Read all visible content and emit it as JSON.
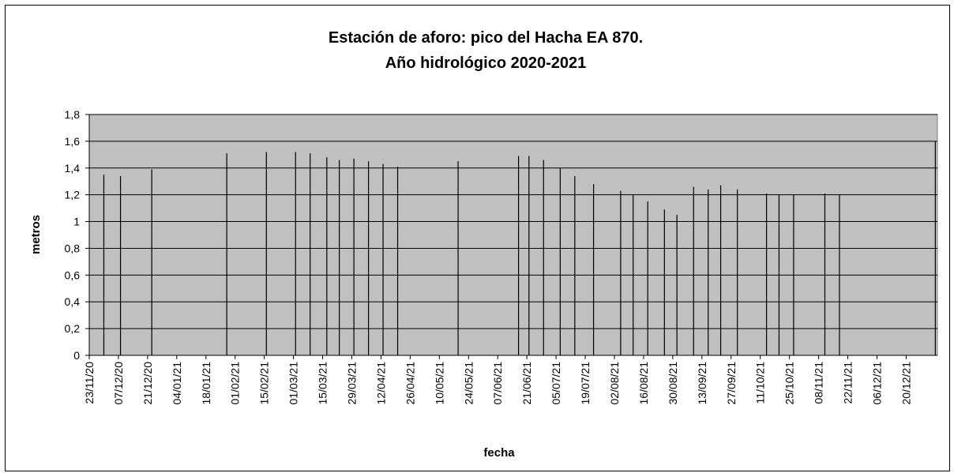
{
  "chart_data": {
    "type": "drop-line",
    "title": [
      "Estación de aforo: pico del Hacha EA 870.",
      "Año hidrológico 2020-2021"
    ],
    "xlabel": "fecha",
    "ylabel": "metros",
    "x": [
      "30/11/20",
      "08/12/20",
      "23/12/20",
      "28/01/21",
      "16/02/21",
      "02/03/21",
      "09/03/21",
      "17/03/21",
      "23/03/21",
      "30/03/21",
      "06/04/21",
      "13/04/21",
      "20/04/21",
      "19/05/21",
      "17/06/21",
      "22/06/21",
      "29/06/21",
      "07/07/21",
      "14/07/21",
      "23/07/21",
      "05/08/21",
      "11/08/21",
      "18/08/21",
      "26/08/21",
      "01/09/21",
      "09/09/21",
      "16/09/21",
      "22/09/21",
      "30/09/21",
      "14/10/21",
      "20/10/21",
      "27/10/21",
      "11/11/21",
      "18/11/21",
      "03/01/22"
    ],
    "values": [
      1.35,
      1.34,
      1.39,
      1.51,
      1.52,
      1.52,
      1.51,
      1.48,
      1.46,
      1.47,
      1.45,
      1.43,
      1.41,
      1.45,
      1.49,
      1.49,
      1.46,
      1.4,
      1.34,
      1.28,
      1.23,
      1.2,
      1.15,
      1.09,
      1.05,
      1.26,
      1.24,
      1.27,
      1.24,
      1.21,
      1.2,
      1.2,
      1.21,
      1.2,
      1.6
    ],
    "color": "#000000",
    "plot_background": "#c0c0c0",
    "grid": true,
    "xlim": [
      "23/11/20",
      "04/01/22"
    ],
    "xticks": [
      "23/11/20",
      "07/12/20",
      "21/12/20",
      "04/01/21",
      "18/01/21",
      "01/02/21",
      "15/02/21",
      "01/03/21",
      "15/03/21",
      "29/03/21",
      "12/04/21",
      "26/04/21",
      "10/05/21",
      "24/05/21",
      "07/06/21",
      "21/06/21",
      "05/07/21",
      "19/07/21",
      "02/08/21",
      "16/08/21",
      "30/08/21",
      "13/09/21",
      "27/09/21",
      "11/10/21",
      "25/10/21",
      "08/11/21",
      "22/11/21",
      "06/12/21",
      "20/12/21"
    ],
    "ylim": [
      0,
      1.8
    ],
    "yticks": [
      0,
      {
        "value": 0.2,
        "label": "0,2"
      },
      {
        "value": 0.4,
        "label": "0,4"
      },
      {
        "value": 0.6,
        "label": "0,6"
      },
      {
        "value": 0.8,
        "label": "0,8"
      },
      1,
      {
        "value": 1.2,
        "label": "1,2"
      },
      {
        "value": 1.4,
        "label": "1,4"
      },
      {
        "value": 1.6,
        "label": "1,6"
      },
      {
        "value": 1.8,
        "label": "1,8"
      }
    ]
  }
}
